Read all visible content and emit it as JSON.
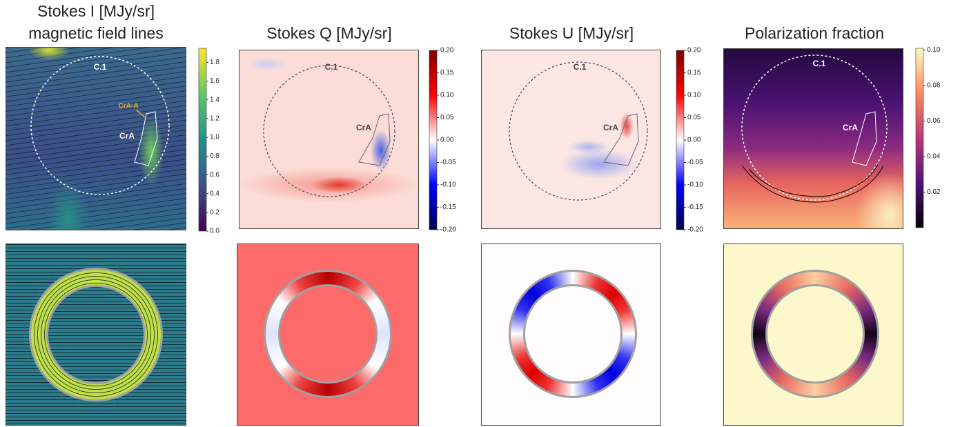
{
  "chart_data": [
    {
      "type": "heatmap",
      "title": "Stokes I [MJy/sr]",
      "subtitle": "magnetic field lines",
      "annotations": [
        "C.1",
        "CrA-A",
        "CrA"
      ],
      "zlim": [
        0,
        1.95
      ],
      "zticks": [
        {
          "value": 0,
          "label": "0.0"
        },
        0.2,
        0.4,
        0.6,
        0.8,
        {
          "value": 1,
          "label": "1.0"
        },
        1.2,
        1.4,
        1.6,
        1.8
      ],
      "colors": [
        "#440154",
        "#3b528b",
        "#21918c",
        "#5ec962",
        "#fde725"
      ]
    },
    {
      "type": "heatmap",
      "title": "Stokes Q [MJy/sr]",
      "annotations": [
        "C.1",
        "CrA"
      ],
      "zlim": [
        -0.2,
        0.2
      ],
      "zticks": [
        {
          "value": 0.2,
          "label": "0.20"
        },
        0.15,
        {
          "value": 0.1,
          "label": "0.10"
        },
        0.05,
        {
          "value": 0,
          "label": "0.00"
        },
        -0.05,
        {
          "value": -0.1,
          "label": "-0.10"
        },
        -0.15,
        {
          "value": -0.2,
          "label": "-0.20"
        }
      ],
      "colors": [
        "#00004c",
        "#0000ff",
        "#ffffff",
        "#ff0000",
        "#800000"
      ]
    },
    {
      "type": "heatmap",
      "title": "Stokes U [MJy/sr]",
      "annotations": [
        "C.1",
        "CrA"
      ],
      "zlim": [
        -0.2,
        0.2
      ],
      "zticks": [
        {
          "value": 0.2,
          "label": "0.20"
        },
        0.15,
        {
          "value": 0.1,
          "label": "0.10"
        },
        0.05,
        {
          "value": 0,
          "label": "0.00"
        },
        -0.05,
        {
          "value": -0.1,
          "label": "-0.10"
        },
        -0.15,
        {
          "value": -0.2,
          "label": "-0.20"
        }
      ],
      "colors": [
        "#00004c",
        "#0000ff",
        "#ffffff",
        "#ff0000",
        "#800000"
      ]
    },
    {
      "type": "heatmap",
      "title": "Polarization fraction",
      "annotations": [
        "C.1",
        "CrA"
      ],
      "zlim": [
        0,
        0.101
      ],
      "zticks": [
        0.02,
        0.04,
        0.06,
        0.08,
        {
          "value": 0.1,
          "label": "0.10"
        }
      ],
      "colors": [
        "#000004",
        "#51127c",
        "#b73779",
        "#fc8961",
        "#fcfdbf"
      ]
    }
  ]
}
